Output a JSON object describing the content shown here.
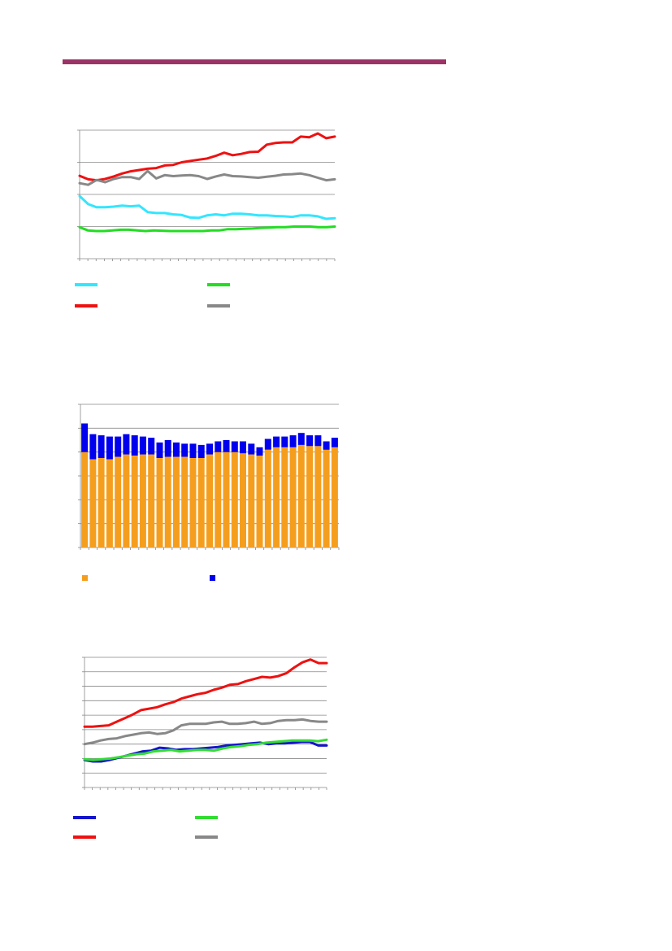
{
  "theme": {
    "rule_color": "#9c3366",
    "grid_color": "#888888",
    "axis_color": "#888888"
  },
  "chart_data": [
    {
      "type": "line",
      "grid": true,
      "ylim": [
        0,
        4
      ],
      "y_gridlines": [
        1,
        2,
        3,
        4
      ],
      "n_x_ticks": 32,
      "legend": "bottom",
      "series": [
        {
          "color": "#33e6ff",
          "values": [
            1.95,
            1.7,
            1.6,
            1.6,
            1.62,
            1.65,
            1.63,
            1.65,
            1.45,
            1.42,
            1.42,
            1.38,
            1.36,
            1.28,
            1.27,
            1.35,
            1.38,
            1.35,
            1.4,
            1.4,
            1.38,
            1.35,
            1.35,
            1.33,
            1.32,
            1.3,
            1.35,
            1.35,
            1.32,
            1.24,
            1.26
          ]
        },
        {
          "color": "#22dd22",
          "values": [
            0.98,
            0.88,
            0.86,
            0.86,
            0.88,
            0.9,
            0.9,
            0.88,
            0.86,
            0.88,
            0.87,
            0.86,
            0.86,
            0.86,
            0.86,
            0.86,
            0.88,
            0.88,
            0.92,
            0.92,
            0.93,
            0.94,
            0.96,
            0.97,
            0.98,
            0.98,
            1.0,
            1.0,
            1.0,
            0.98,
            0.98,
            1.0
          ]
        },
        {
          "color": "#ee1111",
          "values": [
            2.58,
            2.47,
            2.44,
            2.48,
            2.56,
            2.65,
            2.72,
            2.76,
            2.8,
            2.82,
            2.9,
            2.92,
            3.0,
            3.04,
            3.08,
            3.12,
            3.2,
            3.3,
            3.22,
            3.26,
            3.32,
            3.33,
            3.55,
            3.6,
            3.62,
            3.62,
            3.8,
            3.78,
            3.9,
            3.75,
            3.8
          ]
        },
        {
          "color": "#888888",
          "values": [
            2.35,
            2.3,
            2.45,
            2.38,
            2.48,
            2.54,
            2.54,
            2.48,
            2.73,
            2.5,
            2.6,
            2.57,
            2.59,
            2.6,
            2.57,
            2.48,
            2.56,
            2.62,
            2.57,
            2.56,
            2.54,
            2.52,
            2.55,
            2.58,
            2.62,
            2.63,
            2.65,
            2.6,
            2.52,
            2.44,
            2.47
          ]
        }
      ]
    },
    {
      "type": "bar",
      "stacked": true,
      "grid": true,
      "ylim": [
        0,
        6
      ],
      "y_gridlines": [
        1,
        2,
        3,
        4,
        5,
        6
      ],
      "legend": "bottom",
      "series": [
        {
          "color": "#f59e1e",
          "values": [
            4.0,
            3.7,
            3.75,
            3.7,
            3.8,
            3.9,
            3.85,
            3.9,
            3.9,
            3.75,
            3.8,
            3.8,
            3.8,
            3.75,
            3.75,
            3.9,
            4.0,
            4.0,
            4.0,
            3.95,
            3.9,
            3.85,
            4.1,
            4.2,
            4.2,
            4.2,
            4.3,
            4.25,
            4.25,
            4.1,
            4.2
          ]
        },
        {
          "color": "#0000ee",
          "values": [
            1.2,
            1.05,
            0.95,
            0.95,
            0.85,
            0.85,
            0.85,
            0.75,
            0.7,
            0.65,
            0.7,
            0.6,
            0.55,
            0.6,
            0.55,
            0.45,
            0.45,
            0.5,
            0.45,
            0.5,
            0.45,
            0.35,
            0.45,
            0.45,
            0.45,
            0.5,
            0.5,
            0.45,
            0.45,
            0.35,
            0.4
          ]
        }
      ]
    },
    {
      "type": "line",
      "grid": true,
      "ylim": [
        0,
        9
      ],
      "y_gridlines": [
        1,
        2,
        3,
        4,
        5,
        6,
        7,
        8,
        9
      ],
      "n_x_ticks": 32,
      "legend": "bottom",
      "series": [
        {
          "color": "#1515cc",
          "values": [
            1.9,
            1.8,
            1.8,
            1.9,
            2.05,
            2.2,
            2.35,
            2.5,
            2.55,
            2.75,
            2.7,
            2.6,
            2.65,
            2.65,
            2.7,
            2.75,
            2.8,
            2.9,
            2.95,
            3.0,
            3.05,
            3.1,
            3.0,
            3.05,
            3.05,
            3.1,
            3.15,
            3.15,
            2.9,
            2.9
          ]
        },
        {
          "color": "#33dd33",
          "values": [
            1.95,
            1.9,
            1.95,
            2.0,
            2.1,
            2.2,
            2.3,
            2.35,
            2.5,
            2.55,
            2.6,
            2.5,
            2.55,
            2.6,
            2.6,
            2.55,
            2.7,
            2.8,
            2.85,
            2.95,
            3.0,
            3.1,
            3.15,
            3.2,
            3.25,
            3.25,
            3.25,
            3.2,
            3.3
          ]
        },
        {
          "color": "#ee1111",
          "values": [
            4.2,
            4.2,
            4.25,
            4.3,
            4.55,
            4.8,
            5.05,
            5.35,
            5.45,
            5.55,
            5.75,
            5.9,
            6.15,
            6.3,
            6.45,
            6.55,
            6.75,
            6.9,
            7.1,
            7.15,
            7.35,
            7.5,
            7.65,
            7.6,
            7.7,
            7.9,
            8.3,
            8.65,
            8.85,
            8.6,
            8.6
          ]
        },
        {
          "color": "#888888",
          "values": [
            3.0,
            3.1,
            3.25,
            3.35,
            3.4,
            3.55,
            3.65,
            3.75,
            3.8,
            3.7,
            3.75,
            3.95,
            4.3,
            4.4,
            4.4,
            4.4,
            4.5,
            4.55,
            4.4,
            4.4,
            4.45,
            4.55,
            4.4,
            4.45,
            4.6,
            4.65,
            4.65,
            4.7,
            4.6,
            4.55,
            4.55
          ]
        }
      ]
    }
  ]
}
